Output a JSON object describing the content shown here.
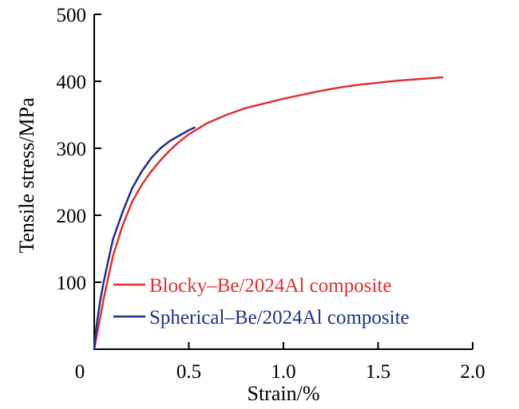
{
  "chart_data": {
    "type": "line",
    "title": "",
    "xlabel": "Strain/%",
    "ylabel": "Tensile stress/MPa",
    "xlim": [
      0,
      2.0
    ],
    "ylim": [
      0,
      500
    ],
    "x_ticks": [
      0,
      0.5,
      1.0,
      1.5,
      2.0
    ],
    "x_tick_labels": [
      "0",
      "0.5",
      "1.0",
      "1.5",
      "2.0"
    ],
    "y_ticks": [
      100,
      200,
      300,
      400,
      500
    ],
    "y_tick_labels": [
      "100",
      "200",
      "300",
      "400",
      "500"
    ],
    "grid": false,
    "legend_position": "bottom-right",
    "series": [
      {
        "name": "Blocky–Be/2024Al composite",
        "color": "#e03030",
        "x": [
          0,
          0.02,
          0.05,
          0.08,
          0.1,
          0.15,
          0.2,
          0.25,
          0.3,
          0.35,
          0.4,
          0.45,
          0.5,
          0.6,
          0.7,
          0.8,
          0.9,
          1.0,
          1.1,
          1.2,
          1.3,
          1.4,
          1.5,
          1.6,
          1.7,
          1.8,
          1.84
        ],
        "y": [
          0,
          30,
          75,
          115,
          140,
          185,
          220,
          245,
          265,
          282,
          297,
          310,
          321,
          338,
          350,
          360,
          367,
          374,
          380,
          386,
          391,
          395,
          398,
          401,
          403,
          405,
          406
        ]
      },
      {
        "name": "Spherical–Be/2024Al composite",
        "color": "#1f2f8c",
        "x": [
          0,
          0.01,
          0.03,
          0.05,
          0.08,
          0.1,
          0.15,
          0.2,
          0.25,
          0.3,
          0.35,
          0.4,
          0.45,
          0.5,
          0.53
        ],
        "y": [
          0,
          30,
          70,
          100,
          140,
          165,
          205,
          240,
          265,
          285,
          300,
          311,
          319,
          327,
          331
        ]
      }
    ]
  }
}
